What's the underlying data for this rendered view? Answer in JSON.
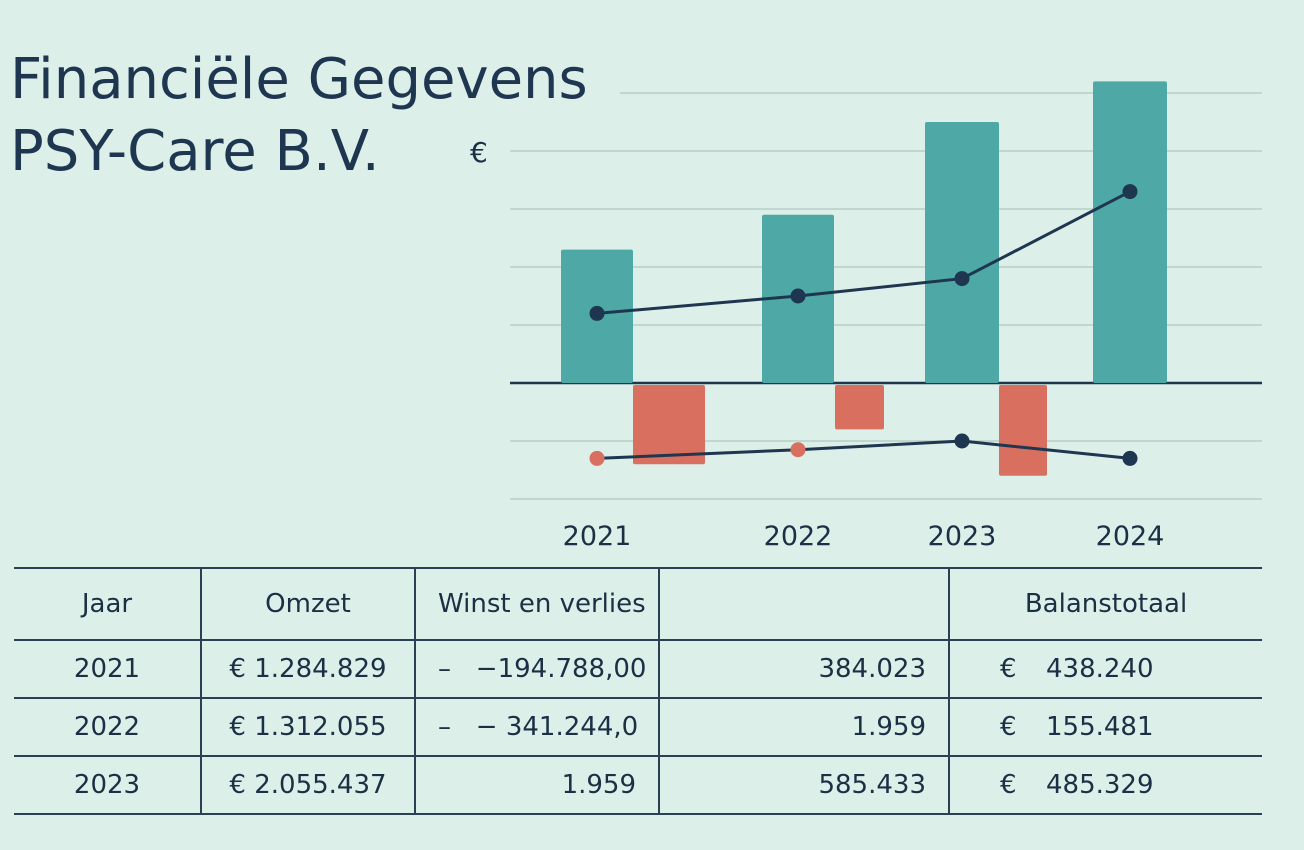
{
  "title": {
    "line1": "Financiële Gegevens",
    "line2": "PSY-Care B.V."
  },
  "chart_data": {
    "type": "bar",
    "unit_label": "€",
    "categories": [
      "2021",
      "2022",
      "2023",
      "2024"
    ],
    "ylim": [
      -2.0,
      5.0
    ],
    "grid": true,
    "series": [
      {
        "kind": "bar",
        "values": [
          2.3,
          2.9,
          4.5,
          5.2
        ],
        "color": "#4ea9a6"
      },
      {
        "kind": "bar",
        "values": [
          -1.4,
          -0.8,
          -1.6,
          null
        ],
        "color": "#d9705f"
      },
      {
        "kind": "line",
        "values": [
          1.2,
          1.5,
          1.8,
          3.3
        ],
        "color": "#1e3650"
      },
      {
        "kind": "line",
        "values": [
          -1.3,
          -1.15,
          -1.0,
          -1.3
        ],
        "color": "#1e3650",
        "marker_colors": [
          "#d9705f",
          "#d9705f",
          "#1e3650",
          "#1e3650"
        ]
      }
    ]
  },
  "table": {
    "headers": [
      "Jaar",
      "Omzet",
      "Winst en verlies",
      "",
      "Balanstotaal"
    ],
    "rows": [
      {
        "jaar": "2021",
        "omzet": "€ 1.284.829",
        "winst_prefix": "–",
        "winst": "−194.788,00",
        "col4": "384.023",
        "balans_cur": "€",
        "balans": "438.240"
      },
      {
        "jaar": "2022",
        "omzet": "€ 1.312.055",
        "winst_prefix": "–",
        "winst": "− 341.244,0",
        "col4": "1.959",
        "balans_cur": "€",
        "balans": "155.481"
      },
      {
        "jaar": "2023",
        "omzet": "€ 2.055.437",
        "winst_prefix": "",
        "winst": "1.959",
        "col4": "585.433",
        "balans_cur": "€",
        "balans": "485.329"
      }
    ]
  }
}
